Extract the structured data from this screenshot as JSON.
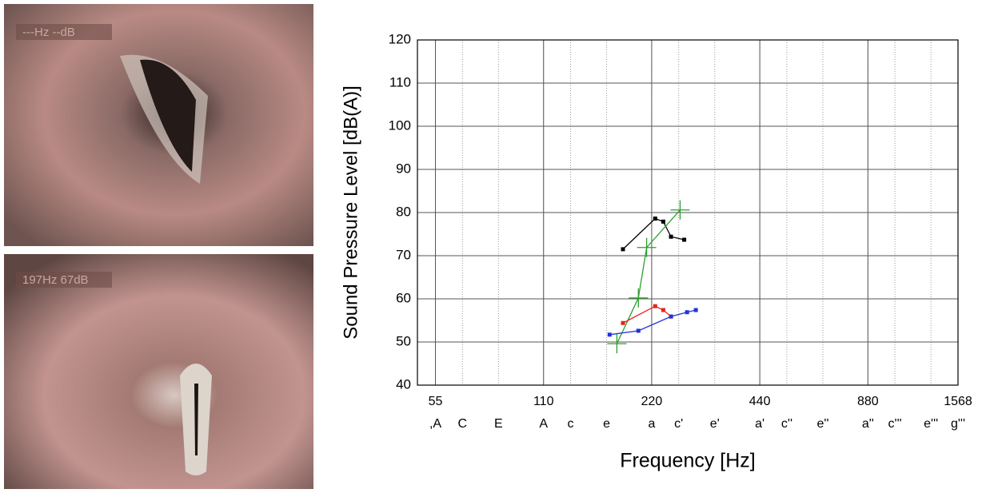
{
  "images": [
    {
      "overlay": "---Hz --dB"
    },
    {
      "overlay": "197Hz 67dB"
    }
  ],
  "chart_data": {
    "type": "line",
    "y_label": "Sound Pressure Level [dB(A)]",
    "x_label": "Frequency [Hz]",
    "log_x": true,
    "grid": true,
    "xlim": [
      49,
      1568
    ],
    "xticks": [
      55,
      110,
      220,
      440,
      880,
      1568
    ],
    "note_ticks": [
      {
        "value": 55,
        "label": ",A"
      },
      {
        "value": 65.4,
        "label": "C"
      },
      {
        "value": 82.4,
        "label": "E"
      },
      {
        "value": 110,
        "label": "A"
      },
      {
        "value": 130.8,
        "label": "c"
      },
      {
        "value": 164.8,
        "label": "e"
      },
      {
        "value": 220,
        "label": "a"
      },
      {
        "value": 261.6,
        "label": "c'"
      },
      {
        "value": 329.6,
        "label": "e'"
      },
      {
        "value": 440,
        "label": "a'"
      },
      {
        "value": 523.3,
        "label": "c''"
      },
      {
        "value": 659.3,
        "label": "e''"
      },
      {
        "value": 880,
        "label": "a''"
      },
      {
        "value": 1046.5,
        "label": "c'''"
      },
      {
        "value": 1318.5,
        "label": "e'''"
      },
      {
        "value": 1568,
        "label": "g'''"
      }
    ],
    "ylim": [
      40,
      120
    ],
    "yticks": [
      40,
      50,
      60,
      70,
      80,
      90,
      100,
      110,
      120
    ],
    "series": [
      {
        "color": "#000000",
        "marker": "square",
        "x": [
          183,
          225,
          237,
          249,
          271
        ],
        "values": [
          71.5,
          78.6,
          77.9,
          74.4,
          73.7
        ]
      },
      {
        "color": "#2ca02c",
        "marker": "cross",
        "x": [
          176,
          202,
          213,
          264
        ],
        "values": [
          49.6,
          60.2,
          71.9,
          80.6
        ]
      },
      {
        "color": "#e8231c",
        "marker": "square",
        "x": [
          183,
          225,
          237,
          249
        ],
        "values": [
          54.4,
          58.3,
          57.4,
          55.9
        ]
      },
      {
        "color": "#2233dd",
        "marker": "square",
        "x": [
          168,
          202,
          249,
          276,
          292
        ],
        "values": [
          51.7,
          52.6,
          55.9,
          56.9,
          57.4
        ]
      }
    ]
  }
}
